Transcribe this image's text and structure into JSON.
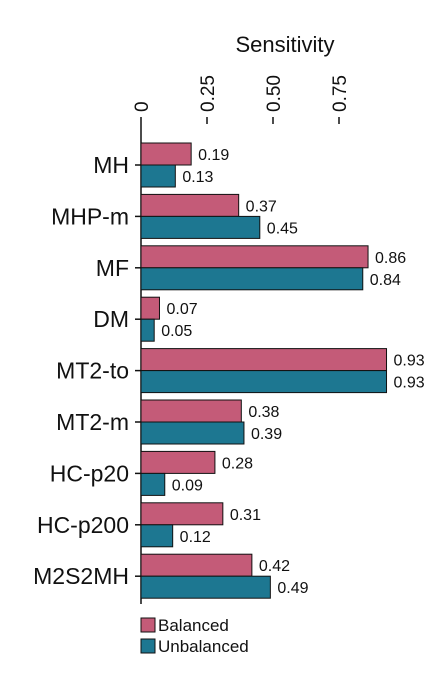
{
  "chart_data": {
    "type": "bar",
    "orientation": "horizontal",
    "xlabel": "Sensitivity",
    "xlim": [
      0,
      1
    ],
    "xticks": [
      {
        "value": 0,
        "label": "0"
      },
      {
        "value": 0.25,
        "label": "0.25"
      },
      {
        "value": 0.5,
        "label": "0.50"
      },
      {
        "value": 0.75,
        "label": "0.75"
      }
    ],
    "categories": [
      "MH",
      "MHP-m",
      "MF",
      "DM",
      "MT2-to",
      "MT2-m",
      "HC-p20",
      "HC-p200",
      "M2S2MH"
    ],
    "series": [
      {
        "name": "Balanced",
        "color": "#c45b78",
        "values": [
          0.19,
          0.37,
          0.86,
          0.07,
          0.93,
          0.38,
          0.28,
          0.31,
          0.42
        ],
        "labels": [
          "0.19",
          "0.37",
          "0.86",
          "0.07",
          "0.93",
          "0.38",
          "0.28",
          "0.31",
          "0.42"
        ]
      },
      {
        "name": "Unbalanced",
        "color": "#1d7791",
        "values": [
          0.13,
          0.45,
          0.84,
          0.05,
          0.93,
          0.39,
          0.09,
          0.12,
          0.49
        ],
        "labels": [
          "0.13",
          "0.45",
          "0.84",
          "0.05",
          "0.93",
          "0.39",
          "0.09",
          "0.12",
          "0.49"
        ]
      }
    ],
    "grid": false,
    "legend": "bottom-left"
  }
}
